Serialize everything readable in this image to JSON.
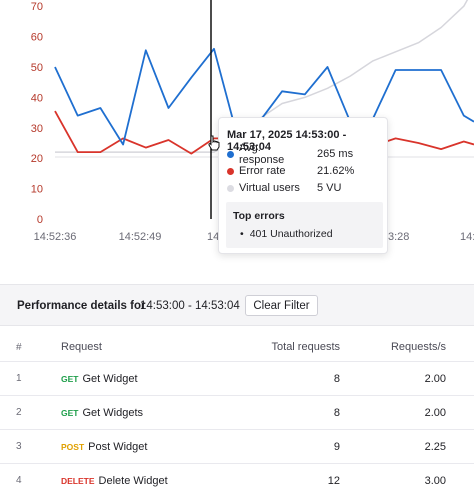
{
  "chart": {
    "y_ticks": [
      "0",
      "10",
      "20",
      "30",
      "40",
      "50",
      "60",
      "70"
    ],
    "x_ticks": [
      "14:52:36",
      "14:52:49",
      "14:5",
      "3:28",
      "14:"
    ],
    "colors": {
      "avg_response": "#1f6fd0",
      "error_rate": "#d9342b",
      "virtual_users": "#d6d6dc",
      "y_axis_text": "#b5382a",
      "axis_text": "#6b6b76"
    }
  },
  "chart_data": {
    "type": "line",
    "y_range": [
      0,
      75
    ],
    "series": [
      {
        "name": "Avg. response",
        "x": [
          0,
          0.0542,
          0.1084,
          0.1626,
          0.2168,
          0.271,
          0.3252,
          0.3794,
          0.4336,
          0.4878,
          0.542,
          0.5962,
          0.6504,
          0.7046,
          0.7588,
          0.813,
          0.8672,
          0.9214,
          0.9756,
          1.0
        ],
        "y": [
          50,
          34,
          36.5,
          24.5,
          55.5,
          36.5,
          46.5,
          56,
          28,
          32,
          42,
          41,
          50,
          32,
          33,
          49,
          49,
          49,
          34,
          32
        ]
      },
      {
        "name": "Error rate",
        "x": [
          0,
          0.0542,
          0.1084,
          0.1626,
          0.2168,
          0.271,
          0.3252,
          0.3794,
          0.4336,
          0.4878,
          0.542,
          0.5962,
          0.6504,
          0.7046,
          0.7588,
          0.813,
          0.8672,
          0.9214,
          0.9756,
          1.0
        ],
        "y": [
          35.5,
          22,
          22,
          26.5,
          23.5,
          26,
          21.5,
          26.5,
          26.5,
          24.5,
          24,
          26.5,
          23,
          22.5,
          24,
          26.5,
          25,
          23,
          25.5,
          24.5
        ]
      },
      {
        "name": "Virtual users",
        "x": [
          0,
          0.0542,
          0.1084,
          0.1626,
          0.2168,
          0.271,
          0.3252,
          0.3794,
          0.4336,
          0.4878,
          0.542,
          0.5962,
          0.6504,
          0.7046,
          0.7588,
          0.813,
          0.8672,
          0.9214,
          0.9756,
          1.0
        ],
        "y": [
          22,
          22,
          22,
          22,
          22,
          22,
          22,
          22,
          26,
          33,
          38,
          40,
          43,
          47,
          52,
          55,
          58,
          63,
          70,
          76
        ]
      }
    ]
  },
  "tooltip": {
    "title": "Mar 17, 2025 14:53:00 - 14:53:04",
    "rows": [
      {
        "label": "Avg. response",
        "value": "265 ms",
        "color": "#1f6fd0"
      },
      {
        "label": "Error rate",
        "value": "21.62%",
        "color": "#d9342b"
      },
      {
        "label": "Virtual users",
        "value": "5 VU",
        "color": "#dcdce2"
      }
    ],
    "errors_header": "Top errors",
    "errors": [
      "401 Unauthorized"
    ]
  },
  "perf": {
    "label": "Performance details for",
    "range": "14:53:00 - 14:53:04",
    "clear_button": "Clear Filter"
  },
  "table": {
    "headers": {
      "num": "#",
      "request": "Request",
      "total": "Total requests",
      "rps": "Requests/s"
    },
    "rows": [
      {
        "num": "1",
        "method": "GET",
        "method_color": "#1e9e4a",
        "name": "Get Widget",
        "total": "8",
        "rps": "2.00"
      },
      {
        "num": "2",
        "method": "GET",
        "method_color": "#1e9e4a",
        "name": "Get Widgets",
        "total": "8",
        "rps": "2.00"
      },
      {
        "num": "3",
        "method": "POST",
        "method_color": "#e0a000",
        "name": "Post Widget",
        "total": "9",
        "rps": "2.25"
      },
      {
        "num": "4",
        "method": "DELETE",
        "method_color": "#d9342b",
        "name": "Delete Widget",
        "total": "12",
        "rps": "3.00"
      }
    ]
  }
}
